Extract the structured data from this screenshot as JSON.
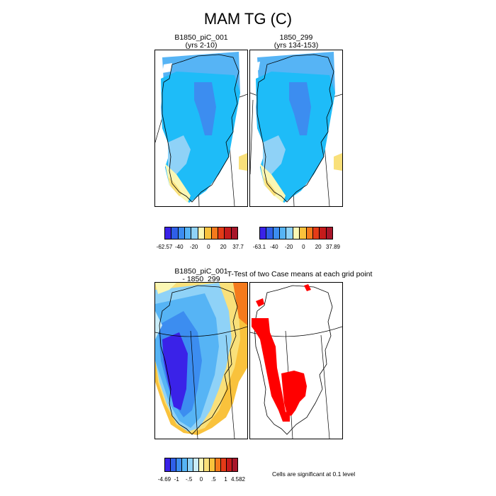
{
  "title": "MAM TG (C)",
  "panels": {
    "p1": {
      "line1": "B1850_piC_001",
      "line2": "(yrs 2-10)"
    },
    "p2": {
      "line1": "1850_299",
      "line2": "(yrs 134-153)"
    },
    "p3": {
      "line1": "B1850_piC_001",
      "line2": "- 1850_299"
    },
    "p4": {
      "title": "T-Test of two Case means at each grid point"
    }
  },
  "colorbars": {
    "cb1": {
      "labels": [
        "-62.57",
        "-40",
        "-20",
        "0",
        "20",
        "37.7"
      ],
      "colors": [
        "#3a22e8",
        "#2f5fe8",
        "#3c8df0",
        "#56b4f5",
        "#8fd2f7",
        "#fbf7b4",
        "#f9c23c",
        "#f47a1c",
        "#e43b17",
        "#c51b1b",
        "#a8162a"
      ]
    },
    "cb2": {
      "labels": [
        "-63.1",
        "-40",
        "-20",
        "0",
        "20",
        "37.89"
      ],
      "colors": [
        "#3a22e8",
        "#2f5fe8",
        "#3c8df0",
        "#56b4f5",
        "#8fd2f7",
        "#fbf7b4",
        "#f9c23c",
        "#f47a1c",
        "#e43b17",
        "#c51b1b",
        "#a8162a"
      ]
    },
    "cb3": {
      "labels": [
        "-4.69",
        "-1",
        "-.5",
        "0",
        ".5",
        "1",
        "4.582"
      ],
      "colors": [
        "#3a22e8",
        "#2f5fe8",
        "#3c8df0",
        "#56b4f5",
        "#8fd2f7",
        "#c9ecf8",
        "#fbf7b4",
        "#f9e07a",
        "#f9c23c",
        "#f47a1c",
        "#e43b17",
        "#c51b1b",
        "#a8162a"
      ]
    }
  },
  "note": "Cells are significant at 0.1 level",
  "legend_colors": {
    "significant": "#ff0000"
  }
}
